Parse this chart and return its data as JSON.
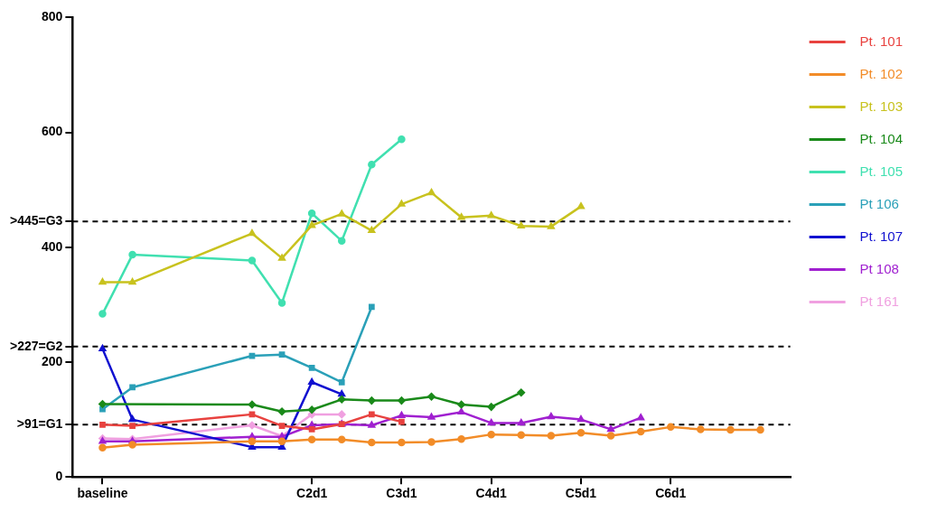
{
  "chart_data": {
    "type": "line",
    "categories": [
      "baseline",
      null,
      null,
      null,
      null,
      null,
      null,
      "C2d1",
      null,
      null,
      "C3d1",
      null,
      null,
      "C4d1",
      null,
      null,
      "C5d1",
      null,
      null,
      "C6d1",
      null,
      null,
      null
    ],
    "ylim": [
      0,
      800
    ],
    "yticks": [
      0,
      {
        "value": 91,
        "label": ">91=G1"
      },
      200,
      {
        "value": 227,
        "label": ">227=G2"
      },
      400,
      {
        "value": 445,
        "label": ">445=G3"
      },
      600,
      800
    ],
    "grid": false,
    "legend": "right",
    "ref_lines": [
      {
        "axis": "y",
        "value": 91,
        "color": "#000000",
        "line_style": "dashed"
      },
      {
        "axis": "y",
        "value": 227,
        "color": "#000000",
        "line_style": "dashed"
      },
      {
        "axis": "y",
        "value": 445,
        "color": "#000000",
        "line_style": "dashed"
      }
    ],
    "series": [
      {
        "name": "Pt. 101",
        "color": "#e8423f",
        "marker": "square",
        "values": [
          91,
          89,
          null,
          null,
          null,
          109,
          89,
          83,
          92,
          109,
          96,
          null,
          null,
          null,
          null,
          null,
          null,
          null,
          null,
          null,
          null,
          null,
          null
        ]
      },
      {
        "name": "Pt. 102",
        "color": "#f28c28",
        "marker": "circle",
        "values": [
          51,
          56,
          null,
          null,
          null,
          62,
          62,
          65,
          65,
          60,
          60,
          61,
          66,
          74,
          73,
          72,
          77,
          72,
          79,
          87,
          83,
          82,
          82
        ]
      },
      {
        "name": "Pt. 103",
        "color": "#c8c21e",
        "marker": "triangle",
        "values": [
          339,
          339,
          null,
          null,
          null,
          424,
          381,
          438,
          458,
          429,
          475,
          495,
          452,
          455,
          437,
          436,
          471,
          null,
          null,
          null,
          null,
          null,
          null
        ]
      },
      {
        "name": "Pt. 104",
        "color": "#1a8a1a",
        "marker": "diamond",
        "values": [
          127,
          null,
          null,
          null,
          null,
          126,
          114,
          117,
          135,
          133,
          133,
          140,
          126,
          122,
          147,
          null,
          null,
          null,
          null,
          null,
          null,
          null,
          null
        ]
      },
      {
        "name": "Pt. 105",
        "color": "#40e0b0",
        "marker": "circle",
        "values": [
          284,
          387,
          null,
          null,
          null,
          377,
          303,
          459,
          411,
          544,
          588,
          null,
          null,
          null,
          null,
          null,
          null,
          null,
          null,
          null,
          null,
          null,
          null
        ]
      },
      {
        "name": "Pt 106",
        "color": "#2aa0b8",
        "marker": "square",
        "values": [
          118,
          156,
          null,
          null,
          null,
          211,
          213,
          190,
          165,
          296,
          null,
          null,
          null,
          null,
          null,
          null,
          null,
          null,
          null,
          null,
          null,
          null,
          null
        ]
      },
      {
        "name": "Pt. 107",
        "color": "#1010d0",
        "marker": "triangle",
        "values": [
          223,
          100,
          null,
          null,
          null,
          52,
          52,
          165,
          144,
          null,
          null,
          null,
          null,
          null,
          null,
          null,
          null,
          null,
          null,
          null,
          null,
          null,
          null
        ]
      },
      {
        "name": "Pt 108",
        "color": "#a020d0",
        "marker": "triangle",
        "values": [
          62,
          62,
          null,
          null,
          null,
          70,
          70,
          90,
          92,
          90,
          107,
          104,
          113,
          94,
          94,
          105,
          100,
          83,
          103,
          null,
          null,
          null,
          null
        ]
      },
      {
        "name": "Pt 161",
        "color": "#f0a0e0",
        "marker": "diamond",
        "values": [
          67,
          66,
          null,
          null,
          null,
          90,
          71,
          109,
          109,
          null,
          null,
          null,
          null,
          null,
          null,
          null,
          null,
          null,
          null,
          null,
          null,
          null,
          null
        ]
      }
    ]
  }
}
